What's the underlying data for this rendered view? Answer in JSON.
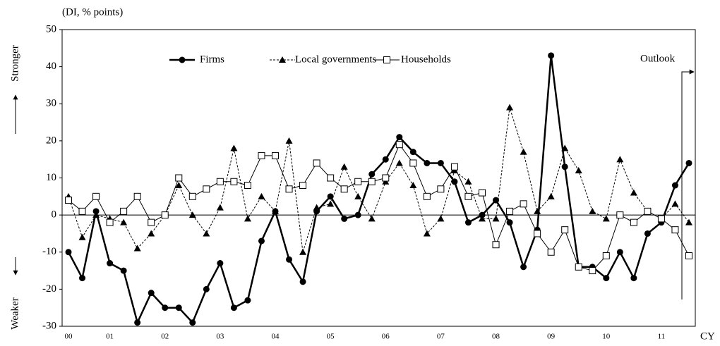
{
  "chart_data": {
    "type": "line",
    "unit_label": "(DI, % points)",
    "up_label": "Stronger",
    "down_label": "Weaker",
    "annotation": "Outlook",
    "x_label": "CY",
    "categories": [
      "00",
      null,
      null,
      "01",
      null,
      null,
      null,
      "02",
      null,
      null,
      null,
      "03",
      null,
      null,
      null,
      "04",
      null,
      null,
      null,
      "05",
      null,
      null,
      null,
      "06",
      null,
      null,
      null,
      "07",
      null,
      null,
      null,
      "08",
      null,
      null,
      null,
      "09",
      null,
      null,
      null,
      "10",
      null,
      null,
      null,
      "11",
      null,
      null
    ],
    "series": [
      {
        "name": "Firms",
        "color": "#000000",
        "values": [
          -10,
          -17,
          1,
          -13,
          -15,
          -29,
          -21,
          -25,
          -25,
          -29,
          -20,
          -13,
          -25,
          -23,
          -7,
          1,
          -12,
          -18,
          1,
          5,
          -1,
          0,
          11,
          15,
          21,
          17,
          14,
          14,
          9,
          -2,
          0,
          4,
          -2,
          -14,
          -4,
          43,
          13,
          -14,
          -14,
          -17,
          -10,
          -17,
          -5,
          -2,
          8,
          14
        ]
      },
      {
        "name": "Local governments",
        "color": "#000000",
        "values": [
          5,
          -6,
          0,
          -1,
          -2,
          -9,
          -5,
          0,
          8,
          0,
          -5,
          2,
          18,
          -1,
          5,
          1,
          20,
          -10,
          2,
          3,
          13,
          5,
          -1,
          9,
          14,
          8,
          -5,
          -1,
          12,
          9,
          -1,
          -1,
          29,
          17,
          1,
          5,
          18,
          12,
          1,
          -1,
          15,
          6,
          1,
          -1,
          3,
          -2
        ]
      },
      {
        "name": "Households",
        "color": "#000000",
        "values": [
          4,
          1,
          5,
          -2,
          1,
          5,
          -2,
          0,
          10,
          5,
          7,
          9,
          9,
          8,
          16,
          16,
          7,
          8,
          14,
          10,
          7,
          9,
          9,
          10,
          19,
          14,
          5,
          7,
          13,
          5,
          6,
          -8,
          1,
          3,
          -5,
          -10,
          -4,
          -14,
          -15,
          -11,
          0,
          -2,
          1,
          -1,
          -4,
          -11
        ]
      }
    ],
    "ylim": [
      -30,
      50
    ],
    "yticks": [
      -30,
      -20,
      -10,
      0,
      10,
      20,
      30,
      40,
      50
    ],
    "grid": false
  }
}
